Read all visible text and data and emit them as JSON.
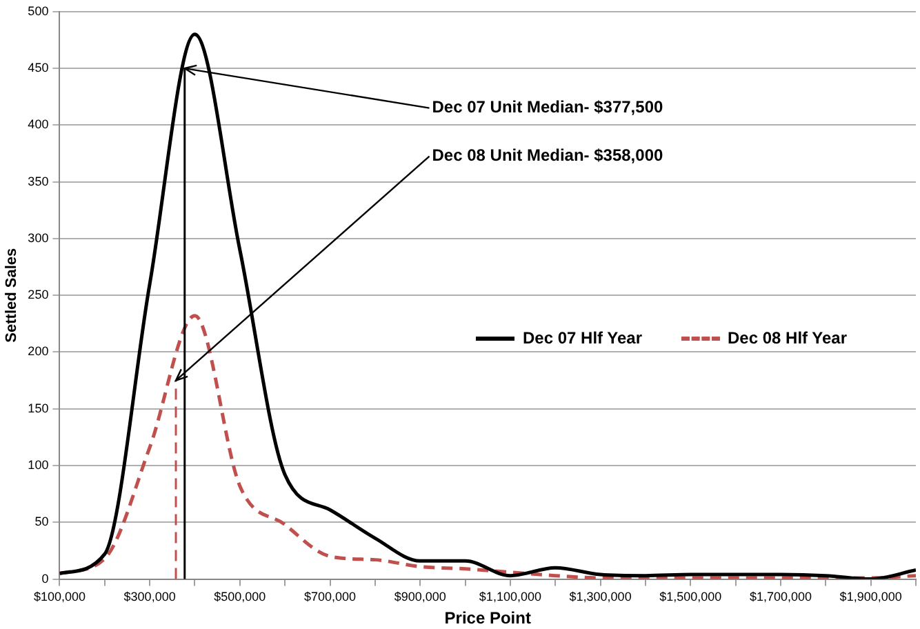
{
  "chart_data": {
    "type": "line",
    "xlabel": "Price Point",
    "ylabel": "Settled Sales",
    "x": [
      100000,
      200000,
      300000,
      400000,
      500000,
      600000,
      700000,
      800000,
      900000,
      1000000,
      1100000,
      1200000,
      1300000,
      1400000,
      1500000,
      1600000,
      1700000,
      1800000,
      1900000,
      2000000
    ],
    "series": [
      {
        "name": "Dec 07 Hlf Year",
        "color": "#000000",
        "line_style": "solid",
        "values": [
          5,
          22,
          260,
          480,
          290,
          92,
          61,
          36,
          16,
          16,
          3,
          10,
          4,
          3,
          4,
          4,
          4,
          3,
          0,
          8
        ]
      },
      {
        "name": "Dec 08 Hlf Year",
        "color": "#c0504d",
        "line_style": "dashed",
        "values": [
          5,
          18,
          116,
          232,
          82,
          48,
          20,
          17,
          11,
          9,
          6,
          3,
          1,
          1,
          1,
          1,
          1,
          1,
          1,
          3
        ]
      }
    ],
    "annotations": [
      {
        "text": "Dec 07 Unit Median- $377,500",
        "x": 377500,
        "y": 450
      },
      {
        "text": "Dec 08 Unit Median- $358,000",
        "x": 358000,
        "y": 175
      }
    ],
    "ref_lines": [
      {
        "axis": "x",
        "value": 377500,
        "color": "#000000",
        "line_style": "solid"
      },
      {
        "axis": "x",
        "value": 358000,
        "color": "#c0504d",
        "line_style": "dashed"
      }
    ],
    "xlim": [
      100000,
      2000000
    ],
    "xticks": [
      {
        "value": 100000,
        "label": "$100,000"
      },
      {
        "value": 200000,
        "label": null
      },
      {
        "value": 300000,
        "label": "$300,000"
      },
      {
        "value": 400000,
        "label": null
      },
      {
        "value": 500000,
        "label": "$500,000"
      },
      {
        "value": 600000,
        "label": null
      },
      {
        "value": 700000,
        "label": "$700,000"
      },
      {
        "value": 800000,
        "label": null
      },
      {
        "value": 900000,
        "label": "$900,000"
      },
      {
        "value": 1000000,
        "label": null
      },
      {
        "value": 1100000,
        "label": "$1,100,000"
      },
      {
        "value": 1200000,
        "label": null
      },
      {
        "value": 1300000,
        "label": "$1,300,000"
      },
      {
        "value": 1400000,
        "label": null
      },
      {
        "value": 1500000,
        "label": "$1,500,000"
      },
      {
        "value": 1600000,
        "label": null
      },
      {
        "value": 1700000,
        "label": "$1,700,000"
      },
      {
        "value": 1800000,
        "label": null
      },
      {
        "value": 1900000,
        "label": "$1,900,000"
      },
      {
        "value": 2000000,
        "label": null
      }
    ],
    "ylim": [
      0,
      500
    ],
    "yticks": [
      0,
      50,
      100,
      150,
      200,
      250,
      300,
      350,
      400,
      450,
      500
    ],
    "grid": "y",
    "legend": "right",
    "marker": "none"
  }
}
